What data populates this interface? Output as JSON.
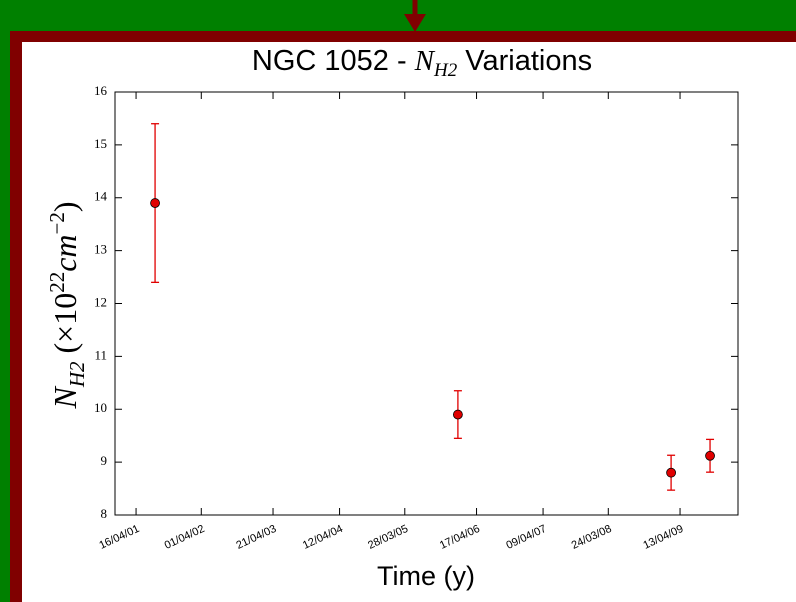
{
  "chart_data": {
    "type": "errorbar",
    "title": [
      "NGC 1052 - ",
      "N",
      "H2",
      " Variations"
    ],
    "xlabel": "Time (y)",
    "ylabel": [
      "N",
      "H2",
      " (×10",
      "22",
      "cm",
      "−2",
      ")"
    ],
    "x": [
      "2001-07-27",
      "2006-01-07",
      "2009-02-24",
      "2009-09-21"
    ],
    "values": [
      13.9,
      9.9,
      8.8,
      9.12
    ],
    "errors": [
      1.5,
      0.45,
      0.33,
      0.31
    ],
    "color": "#e00000",
    "xlim": [
      "2000-12-24",
      "2010-02-18"
    ],
    "xticks": [
      {
        "value": "2001-04-16",
        "label": "16/04/01"
      },
      {
        "value": "2002-04-01",
        "label": "01/04/02"
      },
      {
        "value": "2003-04-21",
        "label": "21/04/03"
      },
      {
        "value": "2004-04-12",
        "label": "12/04/04"
      },
      {
        "value": "2005-03-28",
        "label": "28/03/05"
      },
      {
        "value": "2006-04-17",
        "label": "17/04/06"
      },
      {
        "value": "2007-04-09",
        "label": "09/04/07"
      },
      {
        "value": "2008-03-24",
        "label": "24/03/08"
      },
      {
        "value": "2009-04-13",
        "label": "13/04/09"
      }
    ],
    "ylim": [
      8,
      16
    ],
    "yticks": [
      8,
      9,
      10,
      11,
      12,
      13,
      14,
      15,
      16
    ],
    "grid": false
  }
}
